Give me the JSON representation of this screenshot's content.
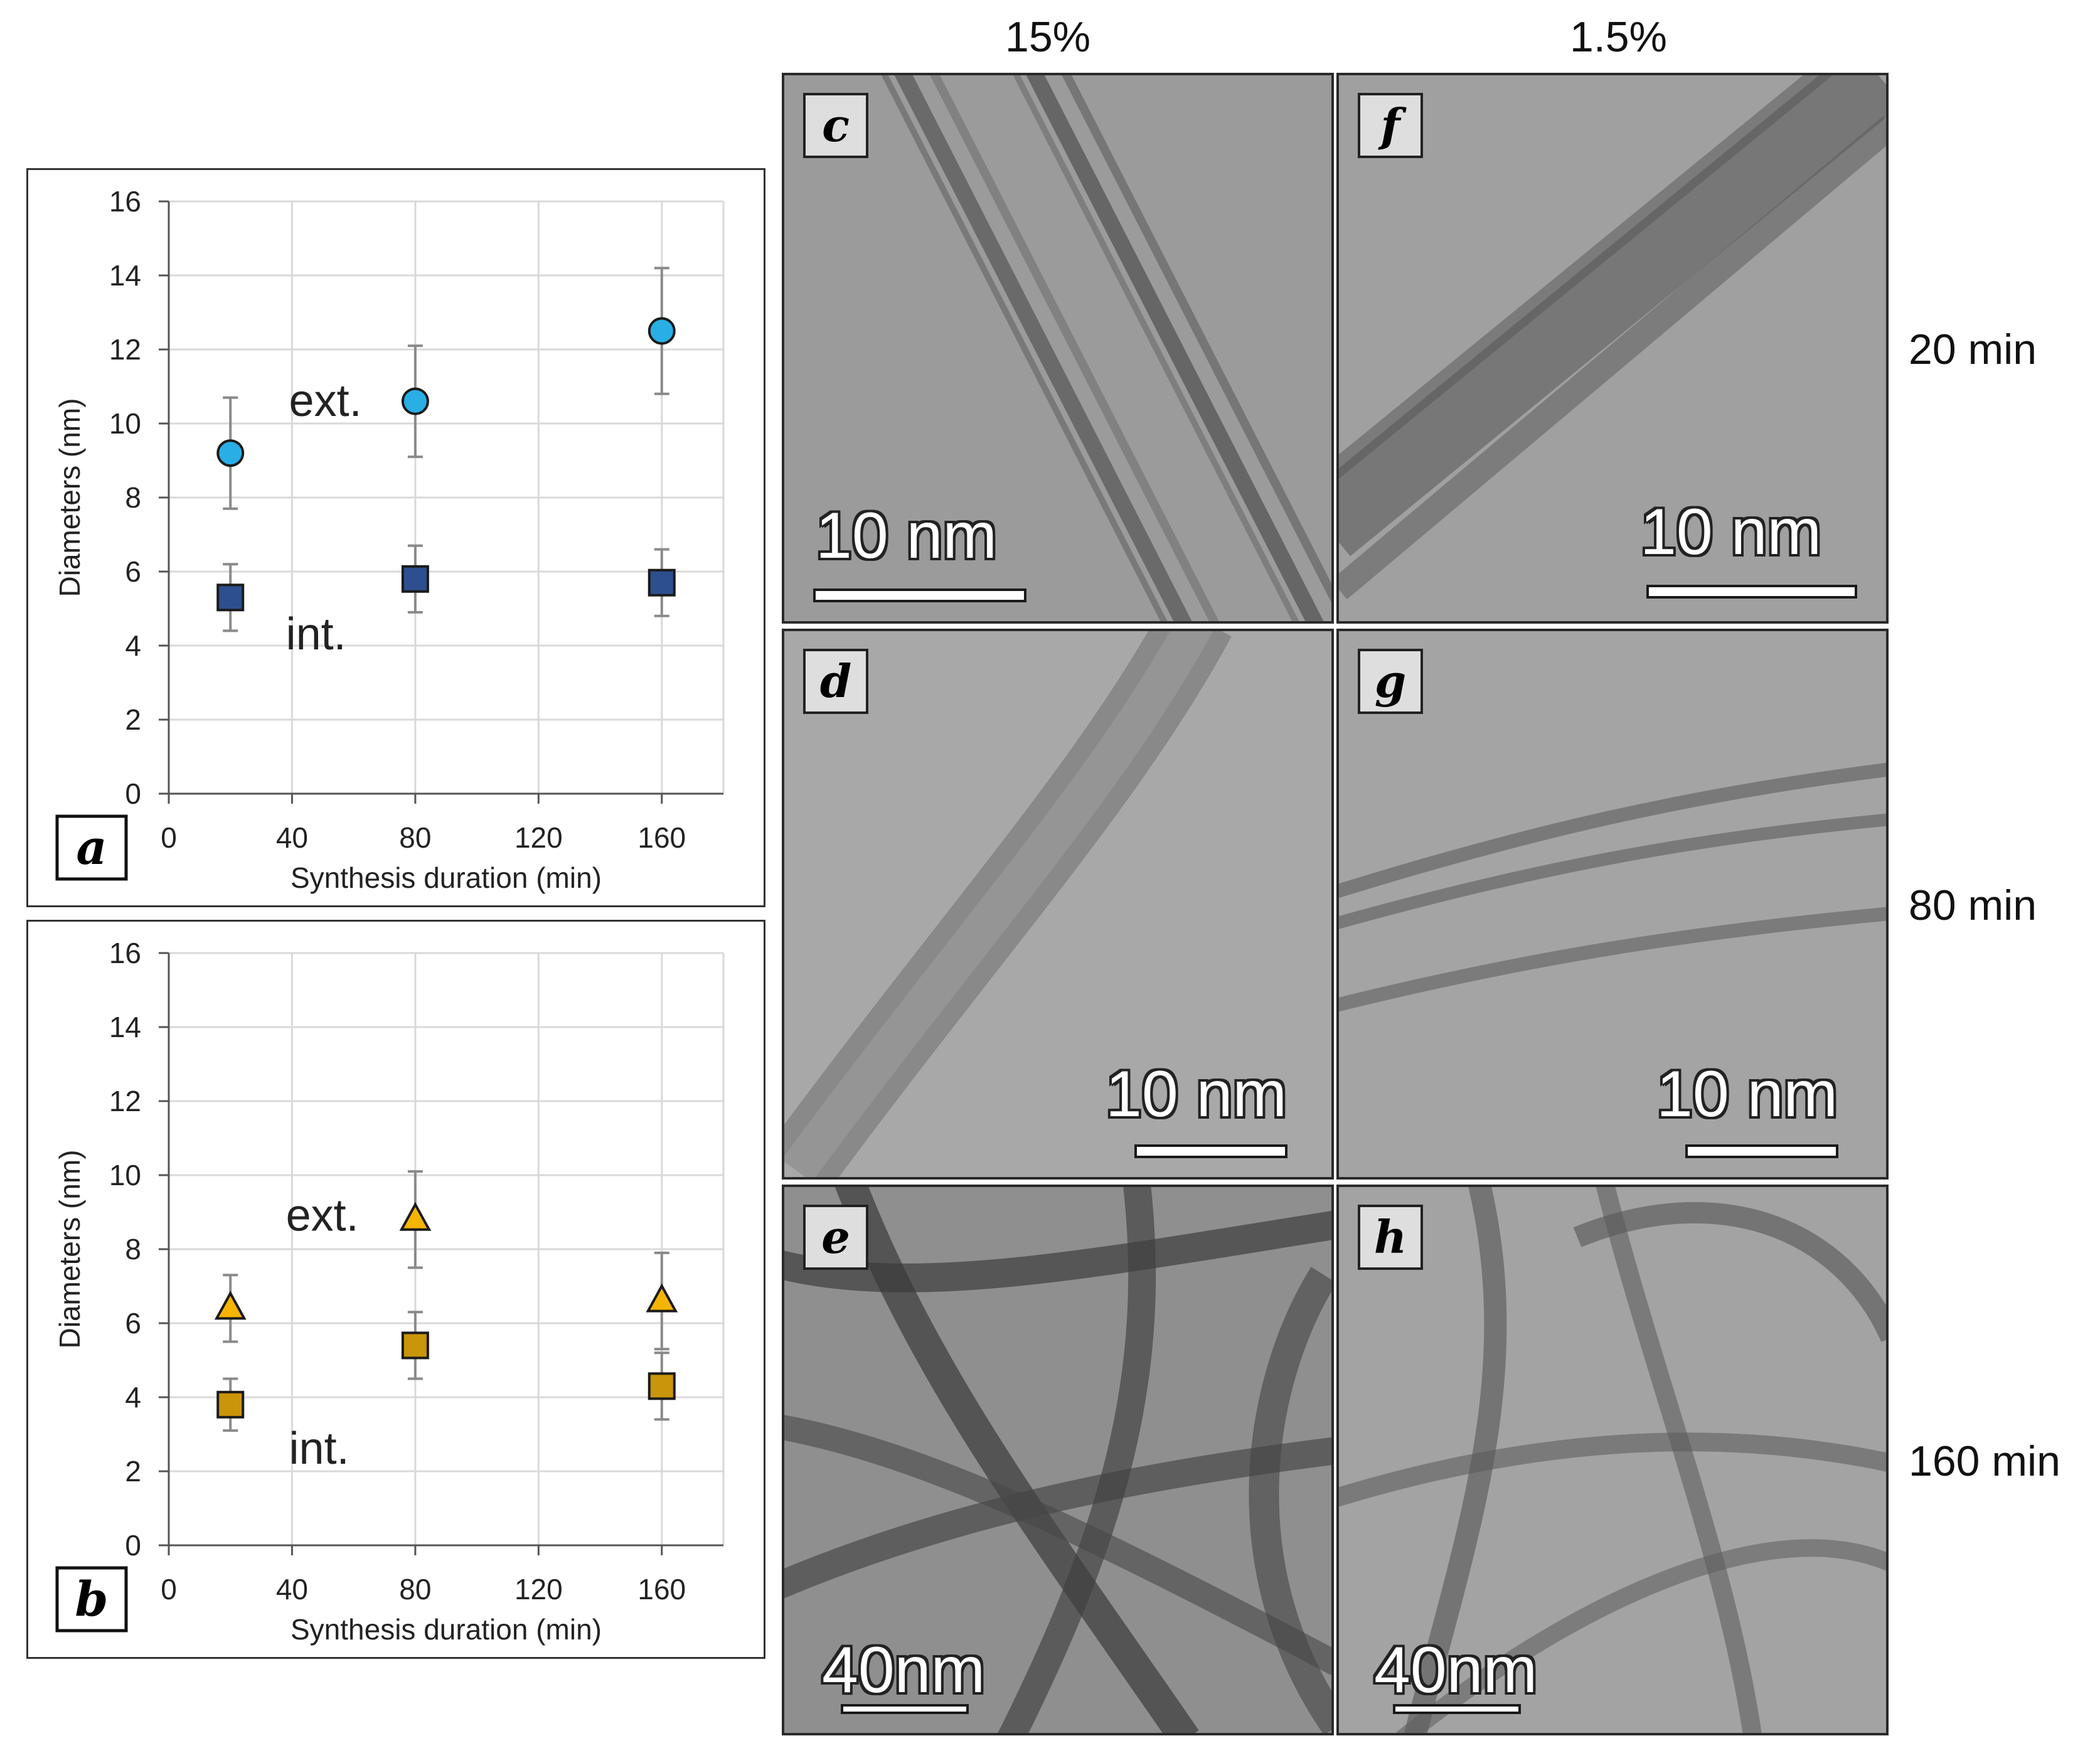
{
  "figure": {
    "columns": [
      "15%",
      "1.5%"
    ],
    "rows": [
      "20 min",
      "80 min",
      "160 min"
    ]
  },
  "chart_data": [
    {
      "type": "scatter",
      "panel_label": "a",
      "xlabel": "Synthesis duration (min)",
      "ylabel": "Diameters (nm)",
      "xlim": [
        0,
        180
      ],
      "ylim": [
        0,
        16
      ],
      "xticks": [
        0,
        40,
        80,
        120,
        160
      ],
      "yticks": [
        0,
        2,
        4,
        6,
        8,
        10,
        12,
        14,
        16
      ],
      "grid": true,
      "series": [
        {
          "name": "ext.",
          "marker": "circle",
          "color": "#29aee6",
          "x": [
            20,
            80,
            160
          ],
          "y": [
            9.2,
            10.6,
            12.5
          ],
          "err": [
            1.5,
            1.5,
            1.7
          ]
        },
        {
          "name": "int.",
          "marker": "square",
          "color": "#2d4f8f",
          "x": [
            20,
            80,
            160
          ],
          "y": [
            5.3,
            5.8,
            5.7
          ],
          "err": [
            0.9,
            0.9,
            0.9
          ]
        }
      ],
      "annotations": [
        {
          "text": "ext.",
          "x": 39,
          "y": 10.2
        },
        {
          "text": "int.",
          "x": 38,
          "y": 3.9
        }
      ]
    },
    {
      "type": "scatter",
      "panel_label": "b",
      "xlabel": "Synthesis duration (min)",
      "ylabel": "Diameters (nm)",
      "xlim": [
        0,
        180
      ],
      "ylim": [
        0,
        16
      ],
      "xticks": [
        0,
        40,
        80,
        120,
        160
      ],
      "yticks": [
        0,
        2,
        4,
        6,
        8,
        10,
        12,
        14,
        16
      ],
      "grid": true,
      "series": [
        {
          "name": "ext.",
          "marker": "triangle",
          "color": "#f5b400",
          "x": [
            20,
            80,
            160
          ],
          "y": [
            6.4,
            8.8,
            6.6
          ],
          "err": [
            0.9,
            1.3,
            1.3
          ]
        },
        {
          "name": "int.",
          "marker": "square",
          "color": "#c9950a",
          "x": [
            20,
            80,
            160
          ],
          "y": [
            3.8,
            5.4,
            4.3
          ],
          "err": [
            0.7,
            0.9,
            0.9
          ]
        }
      ],
      "annotations": [
        {
          "text": "ext.",
          "x": 38,
          "y": 8.5
        },
        {
          "text": "int.",
          "x": 39,
          "y": 2.2
        }
      ]
    }
  ],
  "micrographs": [
    {
      "label": "c",
      "scale": "10 nm"
    },
    {
      "label": "f",
      "scale": "10 nm"
    },
    {
      "label": "d",
      "scale": "10 nm"
    },
    {
      "label": "g",
      "scale": "10 nm"
    },
    {
      "label": "e",
      "scale": "40nm"
    },
    {
      "label": "h",
      "scale": "40nm"
    }
  ]
}
